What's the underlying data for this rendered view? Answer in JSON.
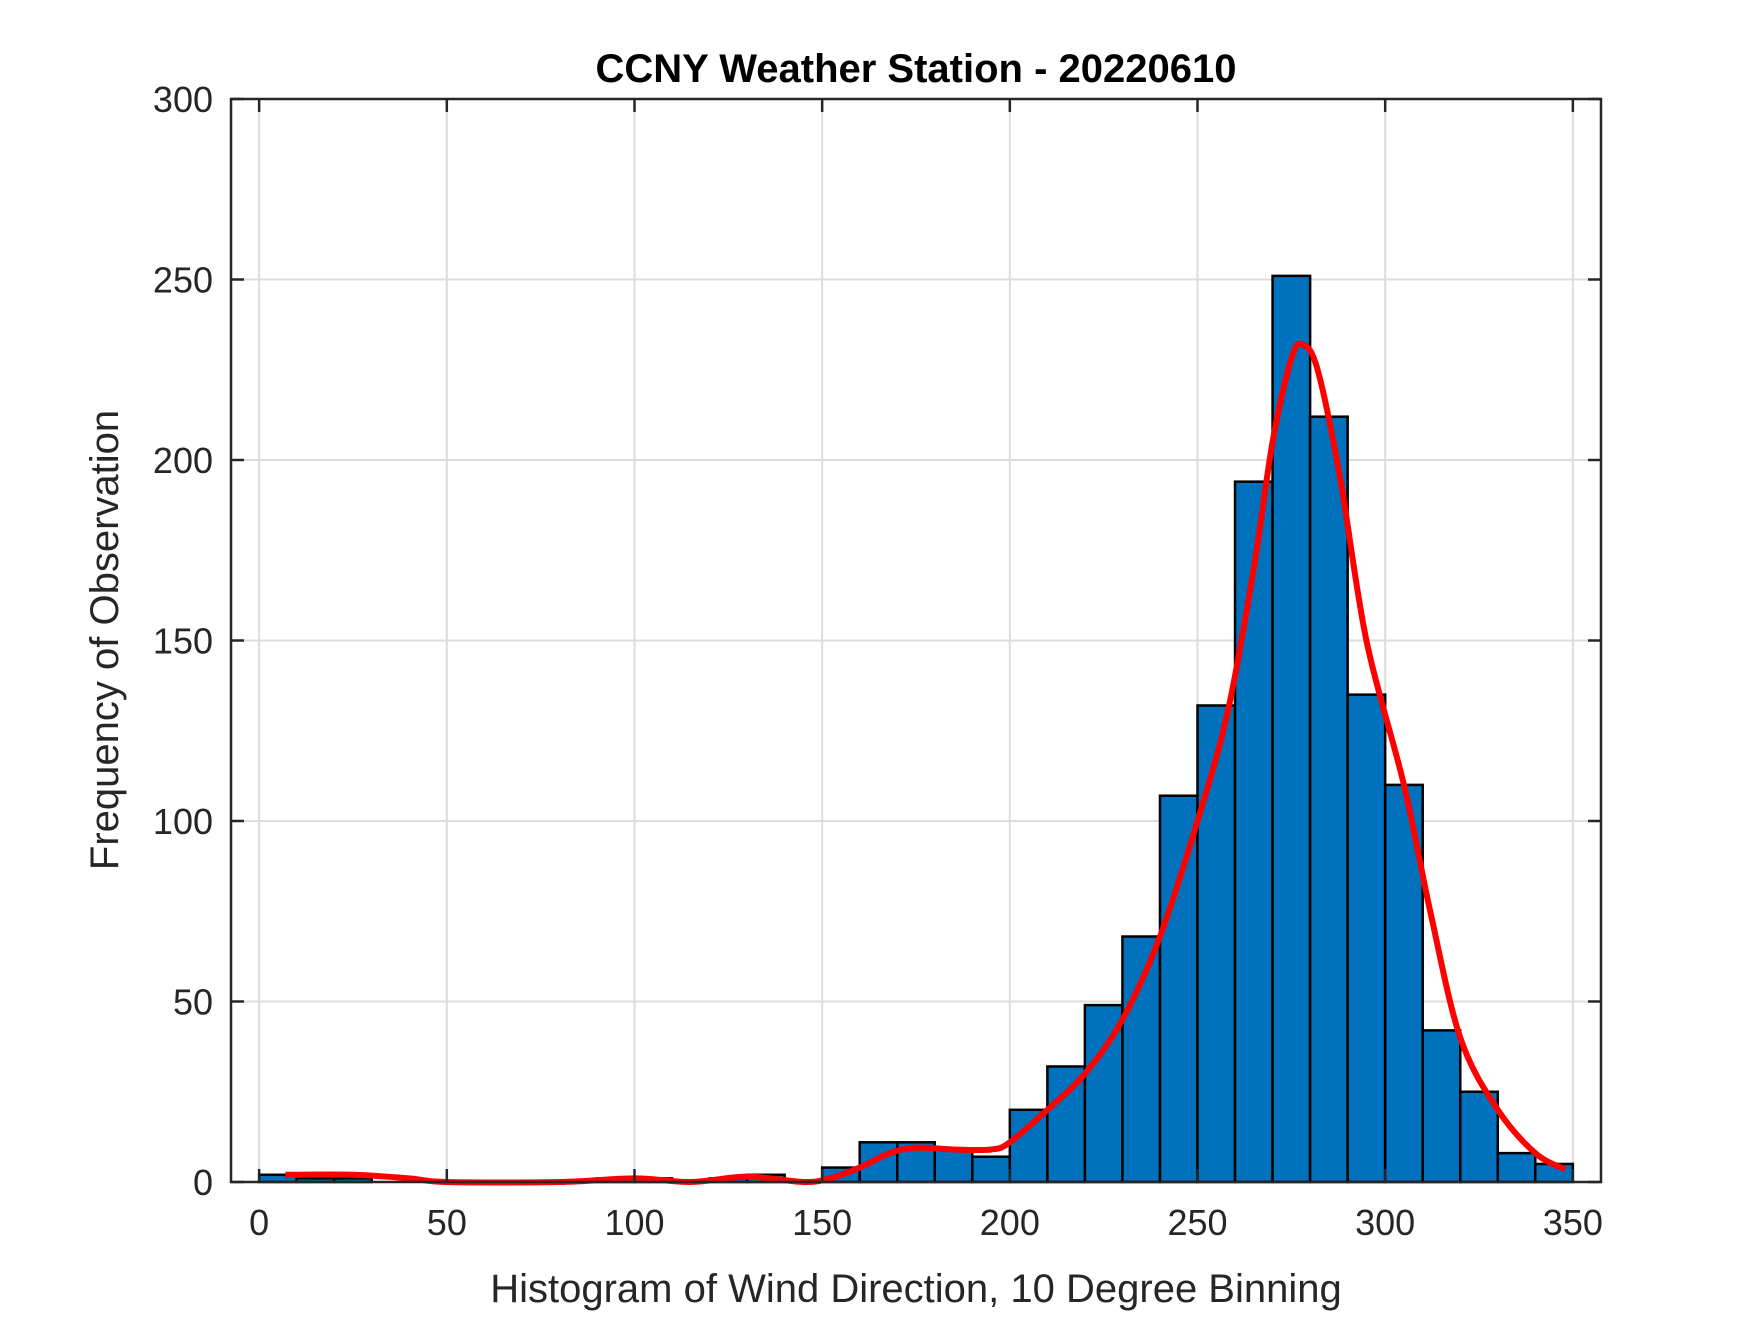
{
  "chart_data": {
    "type": "bar",
    "title": "CCNY Weather Station - 20220610",
    "xlabel": "Histogram of Wind Direction, 10 Degree Binning",
    "ylabel": "Frequency of Observation",
    "xlim": [
      -7.5,
      357.5
    ],
    "ylim": [
      0,
      300
    ],
    "xticks": [
      0,
      50,
      100,
      150,
      200,
      250,
      300,
      350
    ],
    "yticks": [
      0,
      50,
      100,
      150,
      200,
      250,
      300
    ],
    "grid": true,
    "bin_width": 10,
    "bin_edges_start": [
      0,
      10,
      20,
      30,
      40,
      50,
      60,
      70,
      80,
      90,
      100,
      110,
      120,
      130,
      140,
      150,
      160,
      170,
      180,
      190,
      200,
      210,
      220,
      230,
      240,
      250,
      260,
      270,
      280,
      290,
      300,
      310,
      320,
      330,
      340
    ],
    "values": [
      2,
      1,
      1,
      0,
      0,
      0,
      0,
      0,
      0,
      1,
      1,
      0,
      1,
      2,
      0,
      4,
      11,
      11,
      9,
      7,
      20,
      32,
      49,
      68,
      107,
      132,
      194,
      251,
      212,
      135,
      110,
      42,
      25,
      8,
      5
    ],
    "bar_color": "#0072BD",
    "fit_curve": {
      "color": "#FF0000",
      "x": [
        7,
        25,
        40,
        50,
        80,
        100,
        115,
        130,
        145,
        152,
        160,
        168,
        175,
        185,
        195,
        200,
        210,
        220,
        230,
        240,
        250,
        258,
        265,
        270,
        275,
        278,
        282,
        288,
        295,
        305,
        312,
        320,
        330,
        340,
        348
      ],
      "y": [
        2,
        2,
        1,
        0,
        0,
        1,
        0,
        1.5,
        0,
        1,
        4,
        8,
        9.5,
        9,
        9,
        11,
        20,
        30,
        45,
        68,
        100,
        130,
        170,
        205,
        228,
        232,
        225,
        195,
        150,
        110,
        75,
        40,
        20,
        8,
        3.5
      ]
    }
  }
}
